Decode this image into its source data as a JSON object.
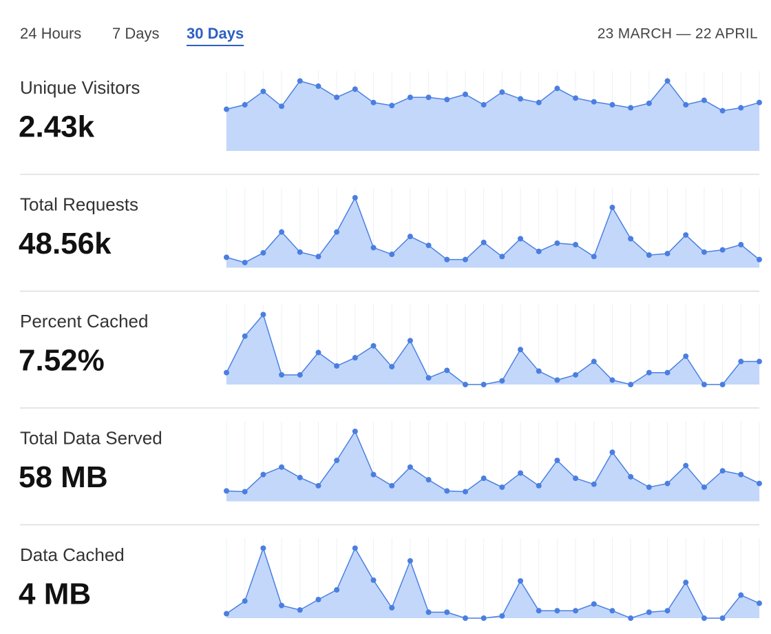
{
  "tabs": {
    "items": [
      "24 Hours",
      "7 Days",
      "30 Days"
    ],
    "active": 2
  },
  "date_range": "23 MARCH — 22 APRIL",
  "chart_data": [
    {
      "type": "area",
      "title": "Unique Visitors",
      "summary": "2.43k",
      "color": "#4a7fe0",
      "fill": "#c3d7fb",
      "ylim": [
        0,
        100
      ],
      "values": [
        56,
        62,
        80,
        60,
        94,
        87,
        72,
        83,
        65,
        61,
        72,
        72,
        69,
        76,
        62,
        79,
        70,
        65,
        84,
        71,
        66,
        62,
        58,
        64,
        94,
        62,
        68,
        54,
        58,
        65
      ]
    },
    {
      "type": "area",
      "title": "Total Requests",
      "summary": "48.56k",
      "color": "#4a7fe0",
      "fill": "#c3d7fb",
      "ylim": [
        0,
        100
      ],
      "values": [
        14,
        7,
        20,
        48,
        21,
        15,
        48,
        94,
        27,
        18,
        42,
        30,
        11,
        11,
        34,
        15,
        39,
        22,
        33,
        31,
        15,
        81,
        39,
        17,
        19,
        44,
        21,
        24,
        31,
        11
      ]
    },
    {
      "type": "area",
      "title": "Percent Cached",
      "summary": "7.52%",
      "color": "#4a7fe0",
      "fill": "#c3d7fb",
      "ylim": [
        0,
        100
      ],
      "values": [
        16,
        65,
        94,
        13,
        13,
        43,
        25,
        36,
        52,
        24,
        59,
        9,
        19,
        0,
        0,
        5,
        47,
        18,
        6,
        13,
        31,
        6,
        0,
        16,
        16,
        38,
        0,
        0,
        31,
        31
      ]
    },
    {
      "type": "area",
      "title": "Total Data Served",
      "summary": "58 MB",
      "color": "#4a7fe0",
      "fill": "#c3d7fb",
      "ylim": [
        0,
        100
      ],
      "values": [
        14,
        13,
        36,
        46,
        32,
        21,
        55,
        94,
        36,
        21,
        46,
        29,
        14,
        13,
        31,
        19,
        38,
        21,
        55,
        31,
        23,
        66,
        33,
        19,
        24,
        48,
        19,
        41,
        36,
        24
      ]
    },
    {
      "type": "area",
      "title": "Data Cached",
      "summary": "4 MB",
      "color": "#4a7fe0",
      "fill": "#c3d7fb",
      "ylim": [
        0,
        100
      ],
      "values": [
        6,
        23,
        94,
        17,
        11,
        25,
        38,
        94,
        51,
        14,
        77,
        8,
        8,
        0,
        0,
        3,
        50,
        10,
        10,
        10,
        19,
        10,
        0,
        8,
        10,
        48,
        0,
        0,
        31,
        20
      ]
    }
  ]
}
